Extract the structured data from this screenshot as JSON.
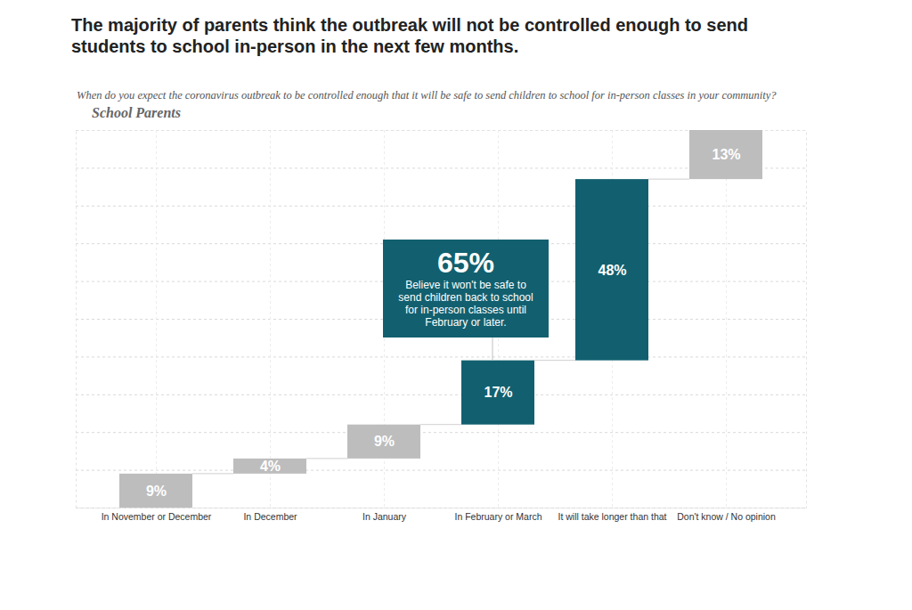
{
  "chart_data": {
    "type": "waterfall",
    "title": "The majority of parents think the outbreak will not be controlled enough to send students to school in-person in the next few months.",
    "subtitle": "When do you expect the coronavirus outbreak to be controlled enough that it will be safe to send children to school for in-person classes in your community?",
    "panel_title": "School Parents",
    "categories": [
      "In November or December",
      "In December",
      "In January",
      "In February or March",
      "It will take longer than that",
      "Don't know / No opinion"
    ],
    "values": [
      9,
      4,
      9,
      17,
      48,
      13
    ],
    "value_labels": [
      "9%",
      "4%",
      "9%",
      "17%",
      "48%",
      "13%"
    ],
    "colors": [
      "#bdbdbd",
      "#bdbdbd",
      "#bdbdbd",
      "#12606f",
      "#12606f",
      "#bdbdbd"
    ],
    "ylim": [
      0,
      100
    ],
    "yticks": [
      0,
      10,
      20,
      30,
      40,
      50,
      60,
      70,
      80,
      90,
      100
    ],
    "grid": true,
    "tick_labels": "x",
    "data_labels": true,
    "annotations": [
      {
        "value": 65,
        "label": "65%",
        "text": "Believe it won't be safe to send children back to school for in-person classes until February or later.",
        "anchor": "In February or March"
      }
    ]
  }
}
